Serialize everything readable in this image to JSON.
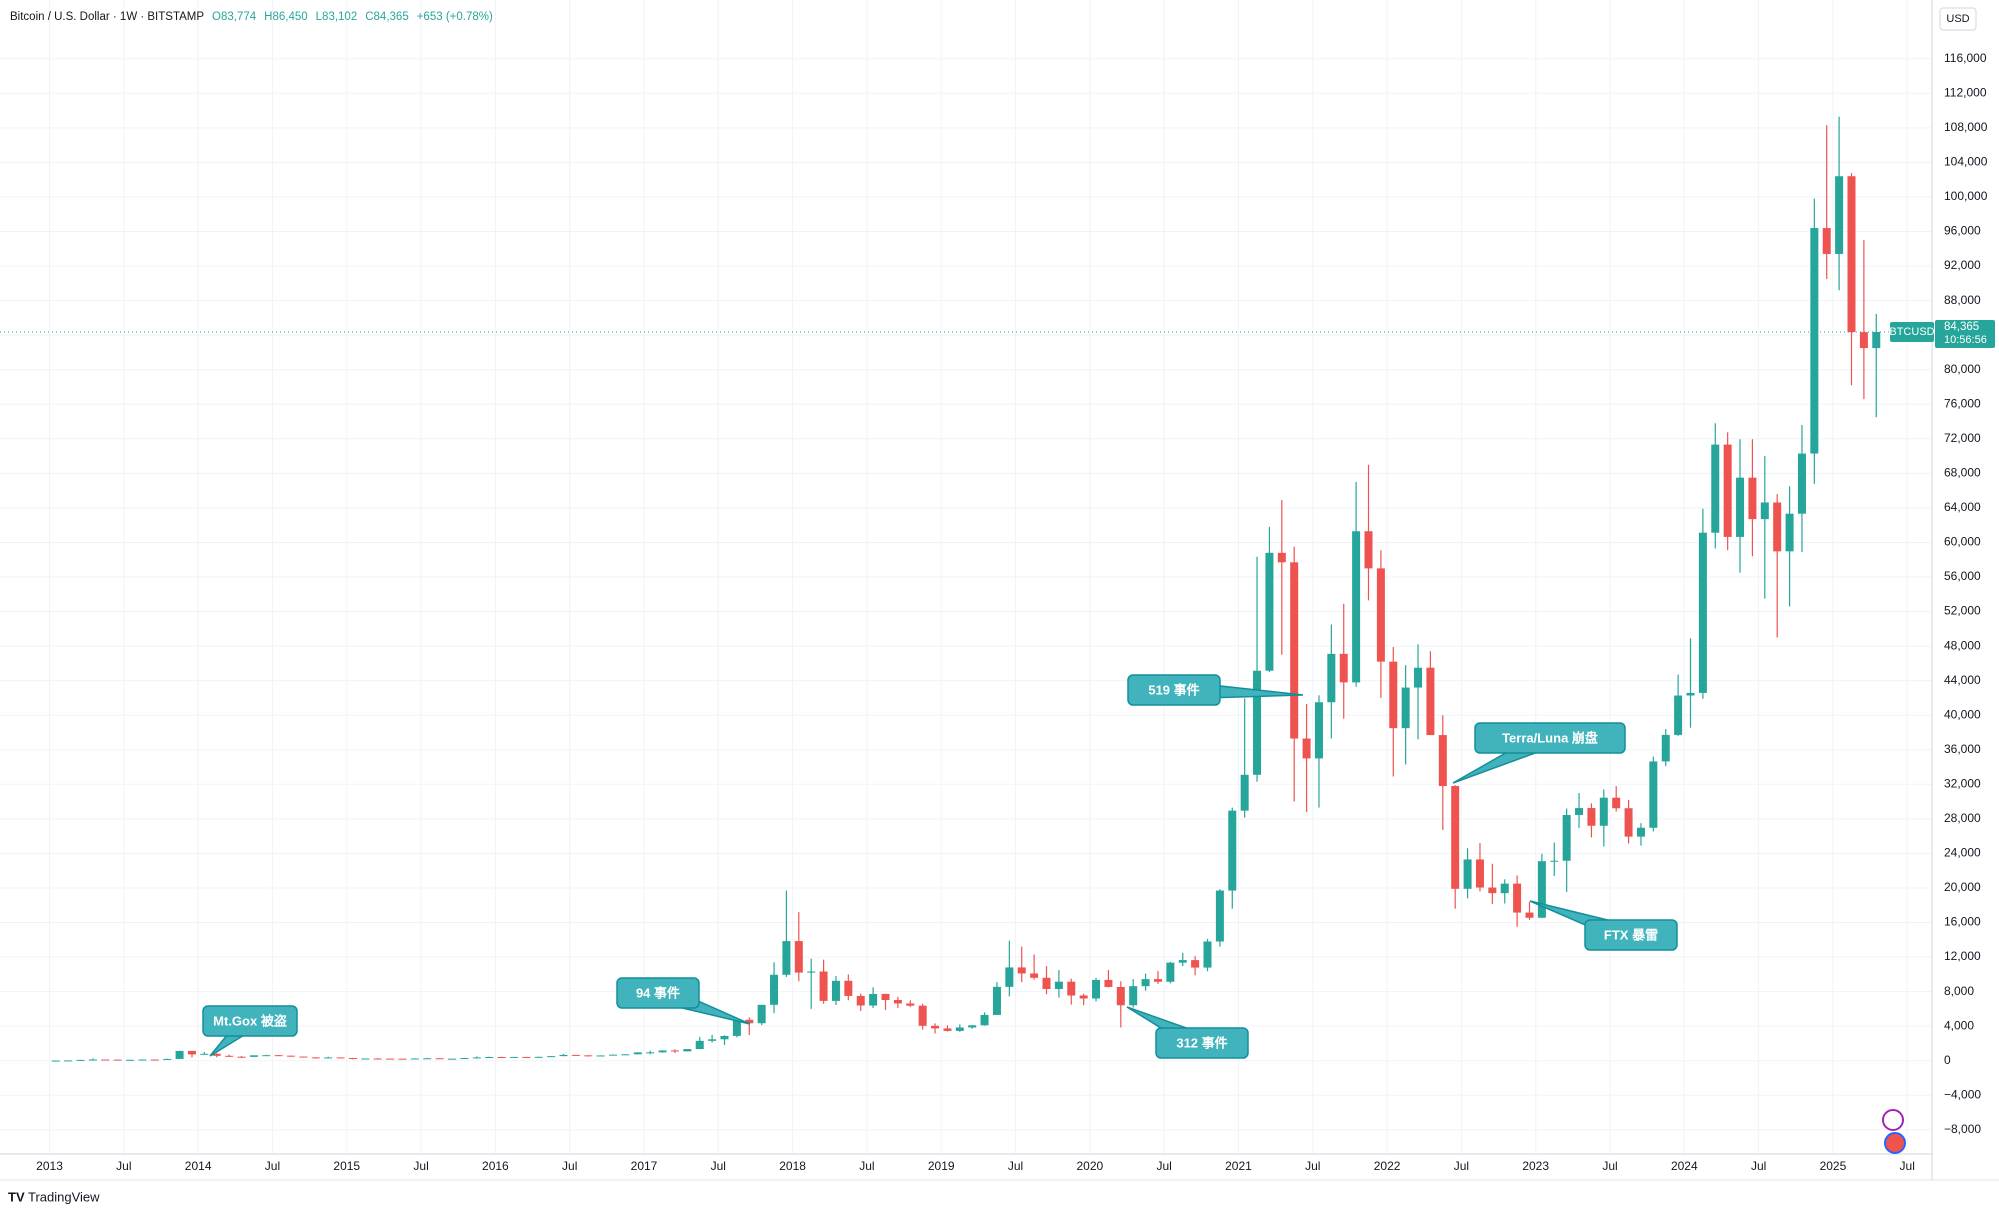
{
  "chart_data": {
    "type": "candlestick",
    "header": {
      "symbol": "Bitcoin / U.S. Dollar · 1W · BITSTAMP",
      "ohlc": [
        "O83,774",
        "H86,450",
        "L83,102",
        "C84,365"
      ],
      "change": "+653 (+0.78%)"
    },
    "currency": "USD",
    "footer": "TradingView",
    "last_price": {
      "name": "BTCUSD",
      "value": 84365,
      "label": "84,365",
      "countdown": "10:56:56"
    },
    "up_color": "#26a69a",
    "down_color": "#ef5350",
    "grid": true,
    "x": [
      "2013-01",
      "2013-02",
      "2013-03",
      "2013-04",
      "2013-05",
      "2013-06",
      "2013-07",
      "2013-08",
      "2013-09",
      "2013-10",
      "2013-11",
      "2013-12",
      "2014-01",
      "2014-02",
      "2014-03",
      "2014-04",
      "2014-05",
      "2014-06",
      "2014-07",
      "2014-08",
      "2014-09",
      "2014-10",
      "2014-11",
      "2014-12",
      "2015-01",
      "2015-02",
      "2015-03",
      "2015-04",
      "2015-05",
      "2015-06",
      "2015-07",
      "2015-08",
      "2015-09",
      "2015-10",
      "2015-11",
      "2015-12",
      "2016-01",
      "2016-02",
      "2016-03",
      "2016-04",
      "2016-05",
      "2016-06",
      "2016-07",
      "2016-08",
      "2016-09",
      "2016-10",
      "2016-11",
      "2016-12",
      "2017-01",
      "2017-02",
      "2017-03",
      "2017-04",
      "2017-05",
      "2017-06",
      "2017-07",
      "2017-08",
      "2017-09",
      "2017-10",
      "2017-11",
      "2017-12",
      "2018-01",
      "2018-02",
      "2018-03",
      "2018-04",
      "2018-05",
      "2018-06",
      "2018-07",
      "2018-08",
      "2018-09",
      "2018-10",
      "2018-11",
      "2018-12",
      "2019-01",
      "2019-02",
      "2019-03",
      "2019-04",
      "2019-05",
      "2019-06",
      "2019-07",
      "2019-08",
      "2019-09",
      "2019-10",
      "2019-11",
      "2019-12",
      "2020-01",
      "2020-02",
      "2020-03",
      "2020-04",
      "2020-05",
      "2020-06",
      "2020-07",
      "2020-08",
      "2020-09",
      "2020-10",
      "2020-11",
      "2020-12",
      "2021-01",
      "2021-02",
      "2021-03",
      "2021-04",
      "2021-05",
      "2021-06",
      "2021-07",
      "2021-08",
      "2021-09",
      "2021-10",
      "2021-11",
      "2021-12",
      "2022-01",
      "2022-02",
      "2022-03",
      "2022-04",
      "2022-05",
      "2022-06",
      "2022-07",
      "2022-08",
      "2022-09",
      "2022-10",
      "2022-11",
      "2022-12",
      "2023-01",
      "2023-02",
      "2023-03",
      "2023-04",
      "2023-05",
      "2023-06",
      "2023-07",
      "2023-08",
      "2023-09",
      "2023-10",
      "2023-11",
      "2023-12",
      "2024-01",
      "2024-02",
      "2024-03",
      "2024-04",
      "2024-05",
      "2024-06",
      "2024-07",
      "2024-08",
      "2024-09",
      "2024-10",
      "2024-11",
      "2024-12",
      "2025-01",
      "2025-02",
      "2025-03",
      "2025-04"
    ],
    "open": [
      13,
      20,
      33,
      93,
      139,
      128,
      97,
      106,
      135,
      127,
      203,
      1130,
      730,
      800,
      570,
      460,
      445,
      625,
      640,
      585,
      480,
      385,
      338,
      378,
      318,
      218,
      255,
      244,
      236,
      230,
      263,
      284,
      230,
      236,
      314,
      377,
      430,
      368,
      437,
      416,
      448,
      531,
      670,
      624,
      575,
      608,
      700,
      743,
      966,
      970,
      1190,
      1080,
      1350,
      2300,
      2480,
      2870,
      4735,
      4340,
      6470,
      9950,
      13850,
      10200,
      10330,
      6925,
      9250,
      7500,
      6390,
      7730,
      7030,
      6630,
      6370,
      4040,
      3740,
      3450,
      3850,
      4100,
      5300,
      8550,
      10800,
      10100,
      9600,
      8300,
      9150,
      7550,
      7200,
      9350,
      8540,
      6420,
      8630,
      9450,
      9140,
      11350,
      11650,
      10780,
      13800,
      19700,
      28950,
      33100,
      45150,
      58800,
      57700,
      37300,
      35000,
      41500,
      47100,
      43800,
      61300,
      57000,
      46200,
      38500,
      43200,
      45500,
      37700,
      31800,
      19900,
      23300,
      20050,
      19400,
      20500,
      17150,
      16550,
      23100,
      23150,
      28450,
      29250,
      27200,
      30450,
      29230,
      25940,
      26970,
      34650,
      37720,
      42280,
      42580,
      61130,
      71330,
      60640,
      67500,
      62700,
      64630,
      58970,
      63330,
      70290,
      96400,
      93400,
      102400,
      84350,
      82500
    ],
    "high": [
      20,
      33,
      95,
      266,
      140,
      130,
      110,
      140,
      145,
      230,
      1163,
      1163,
      1000,
      865,
      700,
      550,
      630,
      680,
      660,
      600,
      490,
      420,
      460,
      385,
      320,
      265,
      300,
      260,
      245,
      268,
      315,
      285,
      245,
      330,
      500,
      465,
      460,
      445,
      440,
      470,
      550,
      780,
      680,
      628,
      620,
      730,
      755,
      975,
      1160,
      1200,
      1300,
      1350,
      2760,
      3000,
      2930,
      4750,
      5000,
      6470,
      11400,
      19700,
      17200,
      11800,
      11700,
      9800,
      9990,
      7770,
      8500,
      7760,
      7400,
      7000,
      6600,
      4320,
      4100,
      4200,
      4130,
      5600,
      9100,
      13880,
      13200,
      12300,
      10950,
      10500,
      9500,
      7750,
      9600,
      10500,
      9200,
      9450,
      10080,
      10400,
      11450,
      12480,
      12100,
      14100,
      19850,
      29300,
      41950,
      58350,
      61800,
      64900,
      59500,
      41300,
      42300,
      50500,
      52900,
      67000,
      69000,
      59100,
      47900,
      45800,
      48200,
      47400,
      40000,
      31900,
      24600,
      25200,
      22800,
      21000,
      21450,
      18400,
      23950,
      25250,
      29200,
      31000,
      29800,
      31400,
      31800,
      30200,
      27500,
      35200,
      38400,
      44700,
      48900,
      63900,
      73800,
      72750,
      71950,
      71950,
      70000,
      65600,
      66500,
      73600,
      99800,
      108300,
      109300,
      102750,
      95000,
      86450
    ],
    "low": [
      13,
      19,
      33,
      50,
      80,
      88,
      65,
      100,
      120,
      105,
      197,
      380,
      740,
      400,
      430,
      340,
      420,
      550,
      570,
      450,
      370,
      275,
      310,
      300,
      150,
      210,
      240,
      215,
      228,
      220,
      250,
      200,
      225,
      235,
      300,
      355,
      355,
      365,
      400,
      415,
      440,
      530,
      605,
      470,
      570,
      605,
      690,
      740,
      750,
      920,
      890,
      1060,
      1350,
      2100,
      1830,
      2700,
      2970,
      4120,
      5500,
      9700,
      9200,
      6000,
      6600,
      6450,
      7000,
      5750,
      6100,
      5880,
      6100,
      6200,
      3600,
      3150,
      3380,
      3350,
      3700,
      4060,
      5320,
      7450,
      9100,
      9400,
      7700,
      7300,
      6500,
      6430,
      6860,
      8500,
      3850,
      6150,
      8100,
      8900,
      8950,
      10950,
      9900,
      10350,
      13200,
      17600,
      28150,
      32300,
      45000,
      47000,
      30000,
      28800,
      29300,
      37300,
      39600,
      43300,
      53300,
      42000,
      32900,
      34300,
      37200,
      37700,
      26700,
      17600,
      18800,
      19600,
      18150,
      18200,
      15500,
      16300,
      16500,
      21400,
      19550,
      26950,
      25850,
      24800,
      28850,
      25150,
      24900,
      26550,
      34100,
      37600,
      38550,
      41900,
      59300,
      59100,
      56500,
      58400,
      53500,
      49000,
      52600,
      58900,
      66800,
      90500,
      89200,
      78200,
      76600,
      74500
    ],
    "close": [
      20,
      33,
      93,
      139,
      128,
      97,
      106,
      135,
      127,
      203,
      1130,
      730,
      800,
      570,
      460,
      445,
      625,
      640,
      585,
      480,
      385,
      338,
      378,
      318,
      218,
      255,
      244,
      236,
      230,
      263,
      284,
      230,
      236,
      314,
      377,
      430,
      368,
      437,
      416,
      448,
      531,
      670,
      624,
      575,
      608,
      700,
      743,
      966,
      970,
      1190,
      1080,
      1350,
      2300,
      2480,
      2870,
      4735,
      4340,
      6470,
      9950,
      13850,
      10200,
      10330,
      6925,
      9250,
      7500,
      6390,
      7730,
      7030,
      6630,
      6370,
      4040,
      3740,
      3450,
      3850,
      4100,
      5300,
      8550,
      10800,
      10100,
      9600,
      8300,
      9150,
      7550,
      7200,
      9350,
      8540,
      6420,
      8630,
      9450,
      9140,
      11350,
      11650,
      10780,
      13800,
      19700,
      28950,
      33100,
      45150,
      58800,
      57700,
      37300,
      35000,
      41500,
      47100,
      43800,
      61300,
      57000,
      46200,
      38500,
      43200,
      45500,
      37700,
      31800,
      19900,
      23300,
      20050,
      19400,
      20500,
      17150,
      16550,
      23100,
      23150,
      28450,
      29250,
      27200,
      30450,
      29230,
      25940,
      26970,
      34650,
      37720,
      42280,
      42580,
      61130,
      71330,
      60640,
      67500,
      62700,
      64630,
      58970,
      63330,
      70290,
      96400,
      93400,
      102400,
      84350,
      82500,
      84365
    ],
    "xlim": [
      "2012-09",
      "2025-09"
    ],
    "xticks": [
      {
        "value": "2013-01",
        "label": "2013"
      },
      {
        "value": "2013-07",
        "label": "Jul"
      },
      {
        "value": "2014-01",
        "label": "2014"
      },
      {
        "value": "2014-07",
        "label": "Jul"
      },
      {
        "value": "2015-01",
        "label": "2015"
      },
      {
        "value": "2015-07",
        "label": "Jul"
      },
      {
        "value": "2016-01",
        "label": "2016"
      },
      {
        "value": "2016-07",
        "label": "Jul"
      },
      {
        "value": "2017-01",
        "label": "2017"
      },
      {
        "value": "2017-07",
        "label": "Jul"
      },
      {
        "value": "2018-01",
        "label": "2018"
      },
      {
        "value": "2018-07",
        "label": "Jul"
      },
      {
        "value": "2019-01",
        "label": "2019"
      },
      {
        "value": "2019-07",
        "label": "Jul"
      },
      {
        "value": "2020-01",
        "label": "2020"
      },
      {
        "value": "2020-07",
        "label": "Jul"
      },
      {
        "value": "2021-01",
        "label": "2021"
      },
      {
        "value": "2021-07",
        "label": "Jul"
      },
      {
        "value": "2022-01",
        "label": "2022"
      },
      {
        "value": "2022-07",
        "label": "Jul"
      },
      {
        "value": "2023-01",
        "label": "2023"
      },
      {
        "value": "2023-07",
        "label": "Jul"
      },
      {
        "value": "2024-01",
        "label": "2024"
      },
      {
        "value": "2024-07",
        "label": "Jul"
      },
      {
        "value": "2025-01",
        "label": "2025"
      },
      {
        "value": "2025-07",
        "label": "Jul"
      }
    ],
    "ylim": [
      -10800,
      122800
    ],
    "yticks": [
      {
        "value": -8000,
        "label": "−8,000"
      },
      {
        "value": -4000,
        "label": "−4,000"
      },
      0,
      {
        "value": 4000,
        "label": "4,000"
      },
      {
        "value": 8000,
        "label": "8,000"
      },
      {
        "value": 12000,
        "label": "12,000"
      },
      {
        "value": 16000,
        "label": "16,000"
      },
      {
        "value": 20000,
        "label": "20,000"
      },
      {
        "value": 24000,
        "label": "24,000"
      },
      {
        "value": 28000,
        "label": "28,000"
      },
      {
        "value": 32000,
        "label": "32,000"
      },
      {
        "value": 36000,
        "label": "36,000"
      },
      {
        "value": 40000,
        "label": "40,000"
      },
      {
        "value": 44000,
        "label": "44,000"
      },
      {
        "value": 48000,
        "label": "48,000"
      },
      {
        "value": 52000,
        "label": "52,000"
      },
      {
        "value": 56000,
        "label": "56,000"
      },
      {
        "value": 60000,
        "label": "60,000"
      },
      {
        "value": 64000,
        "label": "64,000"
      },
      {
        "value": 68000,
        "label": "68,000"
      },
      {
        "value": 72000,
        "label": "72,000"
      },
      {
        "value": 76000,
        "label": "76,000"
      },
      {
        "value": 80000,
        "label": "80,000"
      },
      {
        "value": 84000,
        "label": "84,000"
      },
      {
        "value": 88000,
        "label": "88,000"
      },
      {
        "value": 92000,
        "label": "92,000"
      },
      {
        "value": 96000,
        "label": "96,000"
      },
      {
        "value": 100000,
        "label": "100,000"
      },
      {
        "value": 104000,
        "label": "104,000"
      },
      {
        "value": 108000,
        "label": "108,000"
      },
      {
        "value": 112000,
        "label": "112,000"
      },
      {
        "value": 116000,
        "label": "116,000"
      }
    ],
    "annotations": [
      "Mt.Gox 被盗",
      "94 事件",
      "312 事件",
      "519 事件",
      "Terra/Luna 崩盘",
      "FTX 暴雷"
    ]
  }
}
